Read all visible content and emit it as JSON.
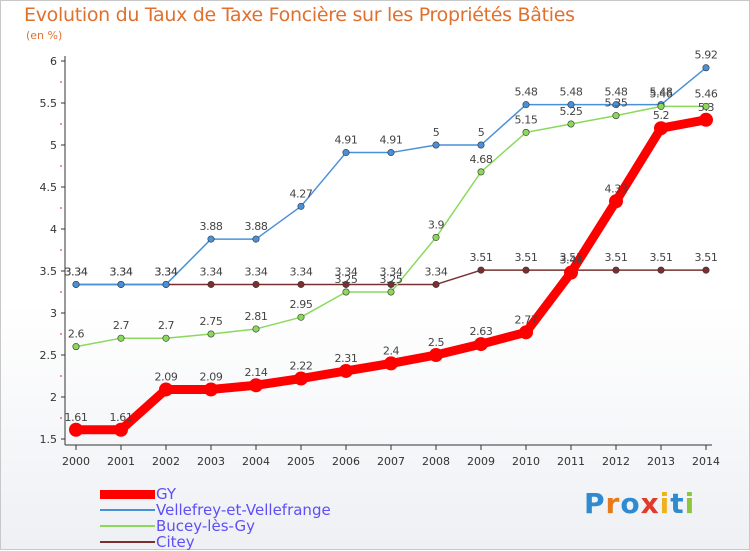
{
  "title": "Evolution du Taux de Taxe Foncière sur les Propriétés Bâties",
  "unit_label": "(en %)",
  "logo": {
    "text": "Proxiti",
    "colors": [
      "#2e8bd0",
      "#e87a1c",
      "#2e8bd0",
      "#e23a2a",
      "#f0b21a",
      "#2e8bd0",
      "#8cc63f"
    ]
  },
  "chart_data": {
    "type": "line",
    "title": "Evolution du Taux de Taxe Foncière sur les Propriétés Bâties",
    "ylabel": "(en %)",
    "xlabel": "",
    "x": [
      "2000",
      "2001",
      "2002",
      "2003",
      "2004",
      "2005",
      "2006",
      "2007",
      "2008",
      "2009",
      "2010",
      "2011",
      "2012",
      "2013",
      "2014"
    ],
    "ylim": [
      1.5,
      6
    ],
    "yticks": [
      "1.5",
      "2",
      "2.5",
      "3",
      "3.5",
      "4",
      "4.5",
      "5",
      "5.5",
      "6"
    ],
    "grid": false,
    "legend_position": "bottom-left",
    "series": [
      {
        "name": "GY",
        "color": "#ff0000",
        "values": [
          1.61,
          1.61,
          2.09,
          2.09,
          2.14,
          2.22,
          2.31,
          2.4,
          2.5,
          2.63,
          2.77,
          3.48,
          4.33,
          5.2,
          5.3
        ],
        "labels": [
          "1.61",
          "1.61",
          "2.09",
          "2.09",
          "2.14",
          "2.22",
          "2.31",
          "2.4",
          "2.5",
          "2.63",
          "2.77",
          "3.48",
          "4.33",
          "5.2",
          "5.3"
        ]
      },
      {
        "name": "Vellefrey-et-Vellefrange",
        "color": "#4a90d9",
        "values": [
          3.34,
          3.34,
          3.34,
          3.88,
          3.88,
          4.27,
          4.91,
          4.91,
          5,
          5,
          5.48,
          5.48,
          5.48,
          5.48,
          5.92
        ],
        "labels": [
          "3.34",
          "3.34",
          "3.34",
          "3.88",
          "3.88",
          "4.27",
          "4.91",
          "4.91",
          "5",
          "5",
          "5.48",
          "5.48",
          "5.48",
          "5.48",
          "5.92"
        ]
      },
      {
        "name": "Bucey-lès-Gy",
        "color": "#8bd95b",
        "values": [
          2.6,
          2.7,
          2.7,
          2.75,
          2.81,
          2.95,
          3.25,
          3.25,
          3.9,
          4.68,
          5.15,
          5.25,
          5.35,
          5.46,
          5.46
        ],
        "labels": [
          "2.6",
          "2.7",
          "2.7",
          "2.75",
          "2.81",
          "2.95",
          "3.25",
          "3.25",
          "3.9",
          "4.68",
          "5.15",
          "5.25",
          "5.35",
          "5.46",
          "5.46"
        ]
      },
      {
        "name": "Citey",
        "color": "#7a3030",
        "values": [
          3.34,
          3.34,
          3.34,
          3.34,
          3.34,
          3.34,
          3.34,
          3.34,
          3.34,
          3.51,
          3.51,
          3.51,
          3.51,
          3.51,
          3.51
        ],
        "labels": [
          "3.34",
          "3.34",
          "3.34",
          "3.34",
          "3.34",
          "3.34",
          "3.34",
          "3.34",
          "3.34",
          "3.51",
          "3.51",
          "3.51",
          "3.51",
          "3.51",
          "3.51"
        ]
      }
    ]
  }
}
